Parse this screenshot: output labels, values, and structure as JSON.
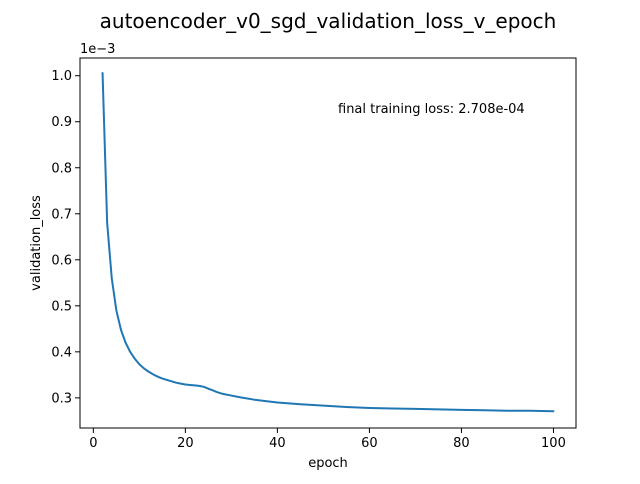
{
  "chart_data": {
    "type": "line",
    "title": "autoencoder_v0_sgd_validation_loss_v_epoch",
    "xlabel": "epoch",
    "ylabel": "validation_loss",
    "y_offset_label": "1e−3",
    "annotation": "final training loss: 2.708e-04",
    "xlim": [
      -2.9,
      104.9
    ],
    "ylim": [
      0.2345,
      1.0385
    ],
    "x_ticks": [
      0,
      20,
      40,
      60,
      80,
      100
    ],
    "y_ticks": [
      0.3,
      0.4,
      0.5,
      0.6,
      0.7,
      0.8,
      0.9,
      1.0
    ],
    "y_tick_labels": [
      "0.3",
      "0.4",
      "0.5",
      "0.6",
      "0.7",
      "0.8",
      "0.9",
      "1.0"
    ],
    "grid": false,
    "line_color": "#1f77b4",
    "series": [
      {
        "x": [
          2,
          3,
          4,
          5,
          6,
          7,
          8,
          9,
          10,
          11,
          12,
          13,
          14,
          15,
          16,
          17,
          18,
          19,
          20,
          21,
          22,
          23,
          24,
          25,
          26,
          27,
          28,
          30,
          32,
          35,
          40,
          45,
          50,
          55,
          60,
          65,
          70,
          75,
          80,
          85,
          90,
          95,
          100
        ],
        "values": [
          1.006,
          0.68,
          0.56,
          0.49,
          0.448,
          0.42,
          0.4,
          0.385,
          0.373,
          0.364,
          0.357,
          0.351,
          0.346,
          0.342,
          0.339,
          0.336,
          0.333,
          0.331,
          0.329,
          0.328,
          0.327,
          0.326,
          0.324,
          0.32,
          0.316,
          0.312,
          0.309,
          0.305,
          0.301,
          0.296,
          0.29,
          0.286,
          0.283,
          0.28,
          0.278,
          0.277,
          0.276,
          0.275,
          0.274,
          0.273,
          0.272,
          0.272,
          0.271
        ]
      }
    ]
  }
}
